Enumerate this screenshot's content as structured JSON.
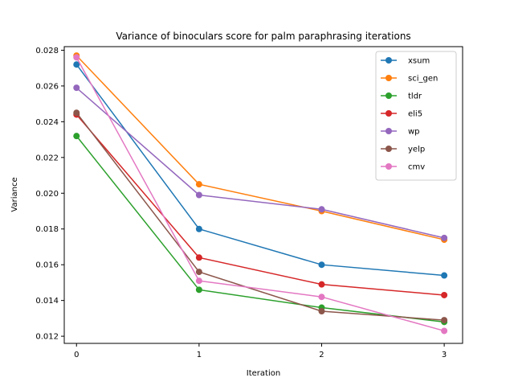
{
  "chart_data": {
    "type": "line",
    "title": "Variance of binoculars score for palm paraphrasing iterations",
    "xlabel": "Iteration",
    "ylabel": "Variance",
    "x": [
      0,
      1,
      2,
      3
    ],
    "xticks": [
      "0",
      "1",
      "2",
      "3"
    ],
    "yticks": [
      "0.012",
      "0.014",
      "0.016",
      "0.018",
      "0.020",
      "0.022",
      "0.024",
      "0.026",
      "0.028"
    ],
    "xlim": [
      -0.1,
      3.15
    ],
    "ylim": [
      0.0116,
      0.0282
    ],
    "grid": false,
    "legend_position": "top-right",
    "series": [
      {
        "name": "xsum",
        "color": "#1f77b4",
        "values": [
          0.0272,
          0.018,
          0.016,
          0.0154
        ]
      },
      {
        "name": "sci_gen",
        "color": "#ff7f0e",
        "values": [
          0.0277,
          0.0205,
          0.019,
          0.0174
        ]
      },
      {
        "name": "tldr",
        "color": "#2ca02c",
        "values": [
          0.0232,
          0.0146,
          0.0136,
          0.0128
        ]
      },
      {
        "name": "eli5",
        "color": "#d62728",
        "values": [
          0.0244,
          0.0164,
          0.0149,
          0.0143
        ]
      },
      {
        "name": "wp",
        "color": "#9467bd",
        "values": [
          0.0259,
          0.0199,
          0.0191,
          0.0175
        ]
      },
      {
        "name": "yelp",
        "color": "#8c564b",
        "values": [
          0.0245,
          0.0156,
          0.0134,
          0.0129
        ]
      },
      {
        "name": "cmv",
        "color": "#e377c2",
        "values": [
          0.0276,
          0.0151,
          0.0142,
          0.0123
        ]
      }
    ]
  }
}
